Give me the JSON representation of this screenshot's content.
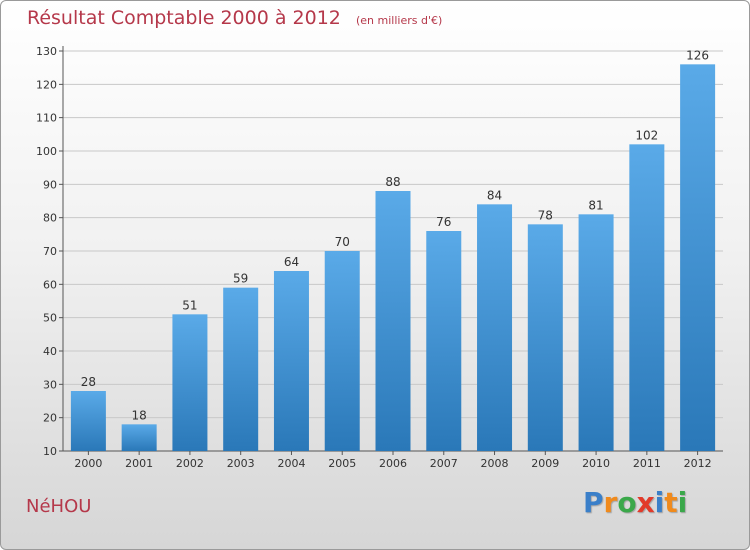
{
  "chart_data": {
    "type": "bar",
    "title": "Résultat Comptable 2000 à 2012",
    "unit_note": "(en milliers d'€)",
    "categories": [
      "2000",
      "2001",
      "2002",
      "2003",
      "2004",
      "2005",
      "2006",
      "2007",
      "2008",
      "2009",
      "2010",
      "2011",
      "2012"
    ],
    "values": [
      28,
      18,
      51,
      59,
      64,
      70,
      88,
      76,
      84,
      78,
      81,
      102,
      126
    ],
    "ylim": [
      10,
      130
    ],
    "yticks": [
      10,
      20,
      30,
      40,
      50,
      60,
      70,
      80,
      90,
      100,
      110,
      120,
      130
    ],
    "grid": true,
    "bar_color_top": "#5aaae8",
    "bar_color_bottom": "#2a78b8"
  },
  "commune": "NéHOU",
  "logo": {
    "letters": [
      "P",
      "r",
      "o",
      "x",
      "i",
      "t",
      "i"
    ],
    "colors": [
      "#3a7fc9",
      "#f08a1c",
      "#3aa84a",
      "#e23a2a",
      "#3a7fc9",
      "#f08a1c",
      "#3aa84a"
    ]
  }
}
